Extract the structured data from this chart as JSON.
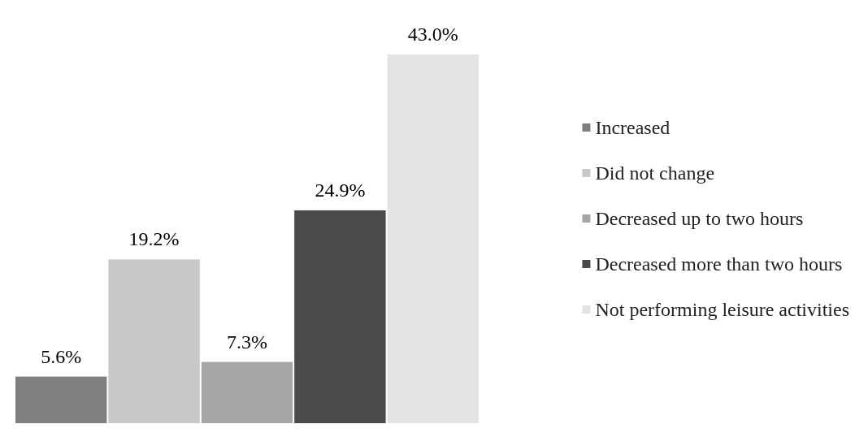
{
  "chart_data": {
    "type": "bar",
    "categories": [
      null
    ],
    "series": [
      {
        "name": "Increased",
        "color": "#7f7f7f",
        "values": [
          5.6
        ],
        "value_labels": [
          "5.6%"
        ]
      },
      {
        "name": "Did not change",
        "color": "#c8c8c8",
        "values": [
          19.2
        ],
        "value_labels": [
          "19.2%"
        ]
      },
      {
        "name": "Decreased up to two hours",
        "color": "#a6a6a6",
        "values": [
          7.3
        ],
        "value_labels": [
          "7.3%"
        ]
      },
      {
        "name": "Decreased more than two hours",
        "color": "#4a4a4a",
        "values": [
          24.9
        ],
        "value_labels": [
          "24.9%"
        ]
      },
      {
        "name": "Not performing leisure activities",
        "color": "#e3e3e3",
        "values": [
          43.0
        ],
        "value_labels": [
          "43.0%"
        ]
      }
    ],
    "legend": "right"
  }
}
